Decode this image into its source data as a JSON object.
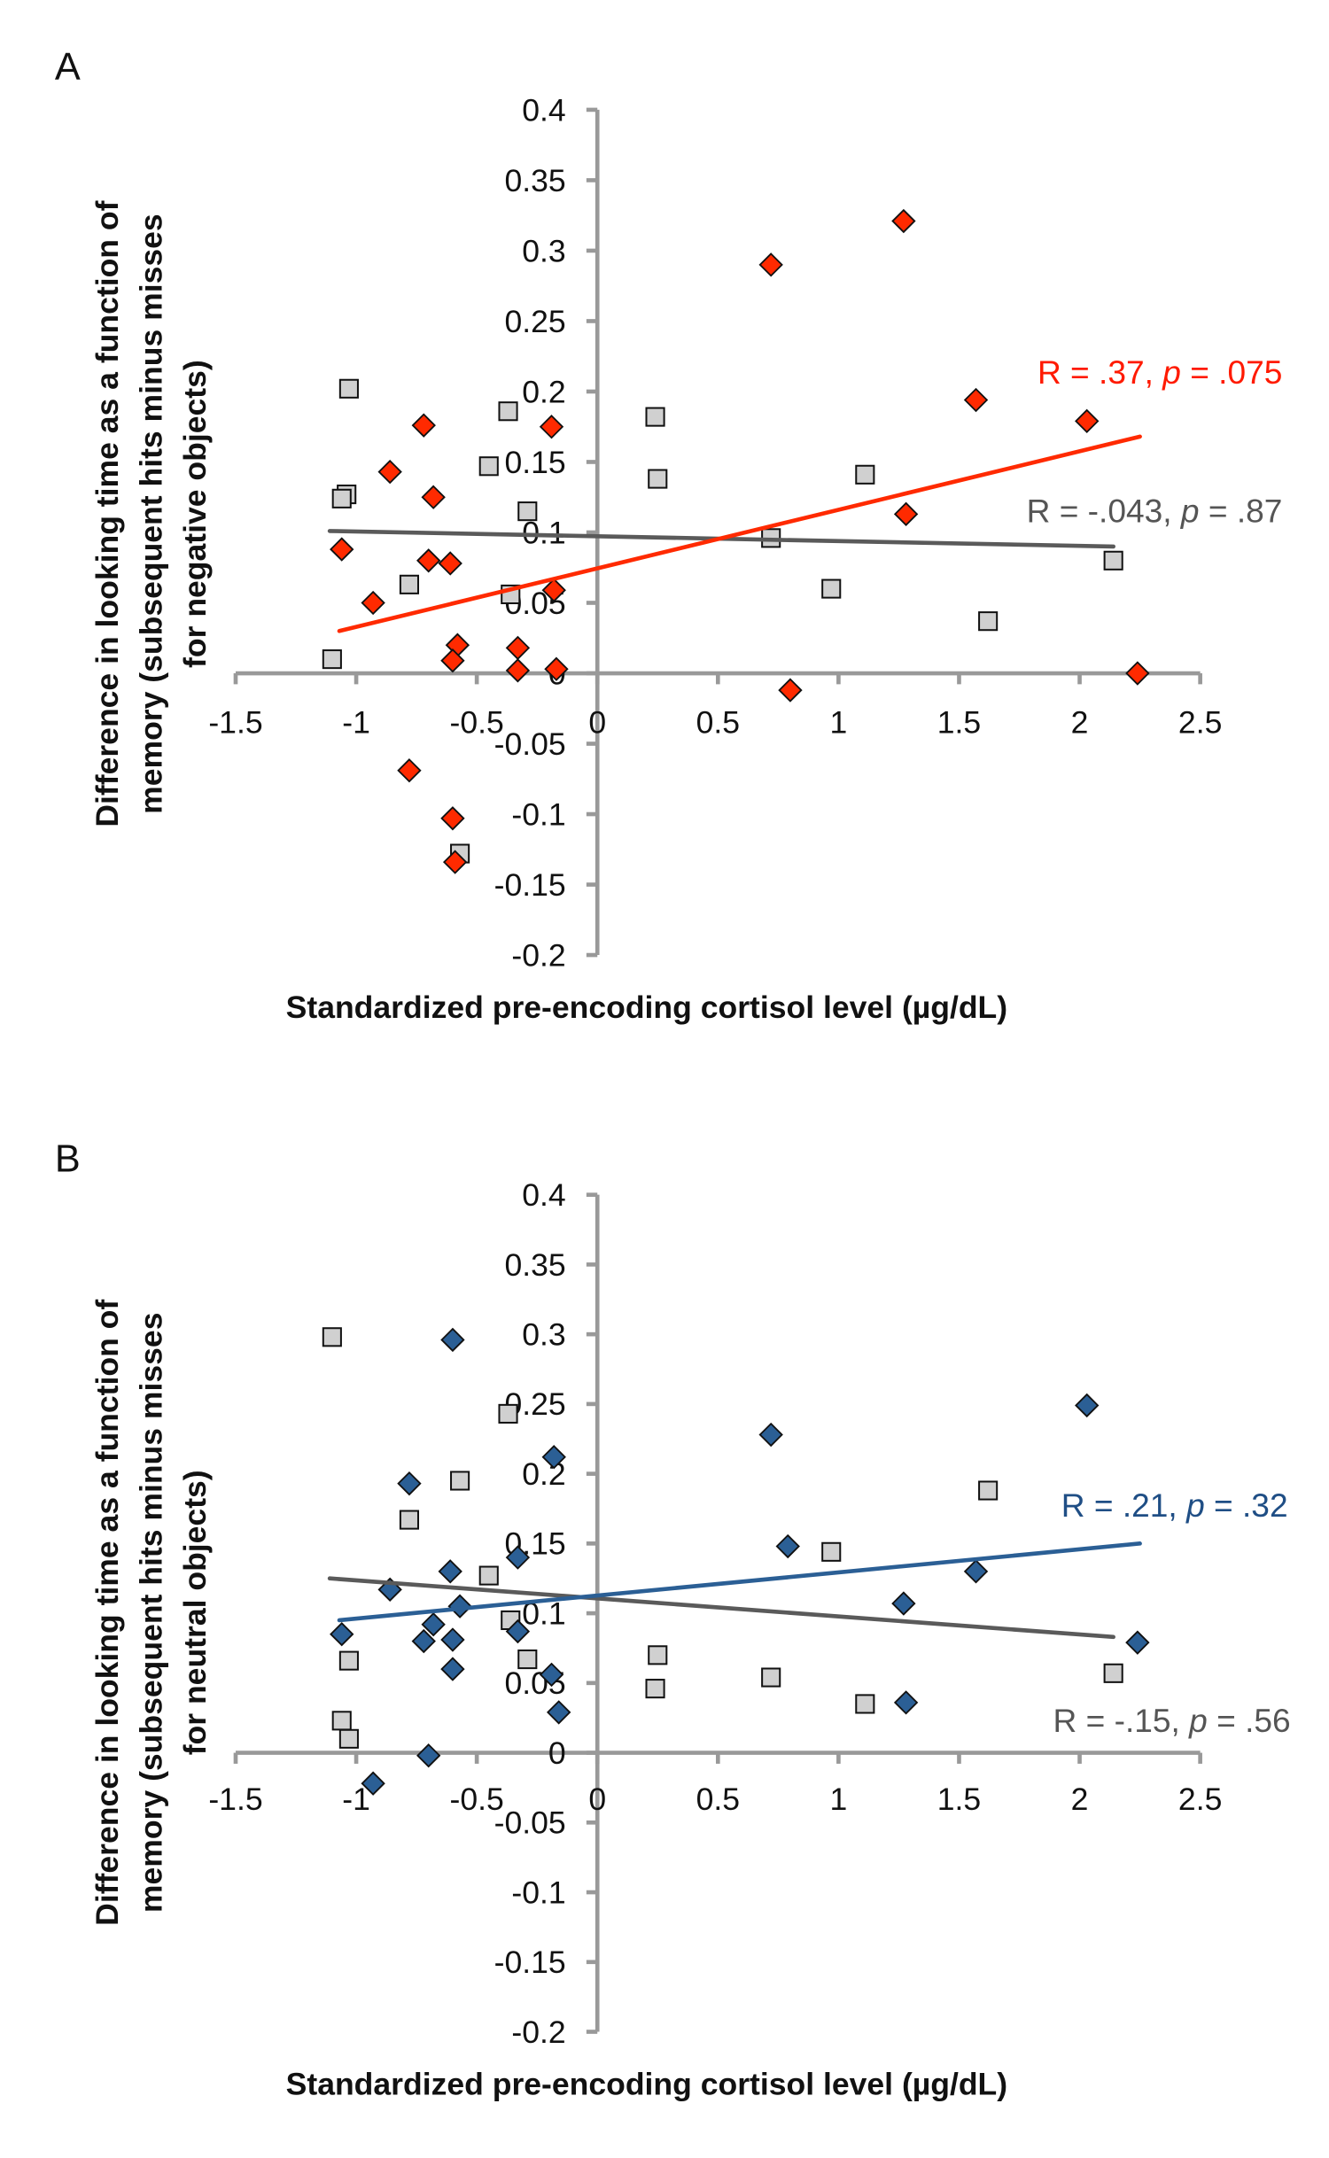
{
  "chart_data": [
    {
      "type": "scatter",
      "panel_label": "A",
      "xlabel": "Standardized pre-encoding cortisol level (µg/dL)",
      "ylabel_lines": [
        "Difference in looking time as a function of",
        "memory (subsequent hits minus misses",
        "for negative objects)"
      ],
      "xlim": [
        -1.5,
        2.5
      ],
      "ylim": [
        -0.2,
        0.4
      ],
      "x_ticks": [
        "-1.5",
        "-1",
        "-0.5",
        "0",
        "0.5",
        "1",
        "1.5",
        "2",
        "2.5"
      ],
      "y_ticks": [
        "-0.2",
        "-0.15",
        "-0.1",
        "-0.05",
        "0",
        "0.05",
        "0.1",
        "0.15",
        "0.2",
        "0.25",
        "0.3",
        "0.35",
        "0.4"
      ],
      "grid": false,
      "series": [
        {
          "marker": "diamond",
          "color": "#ff2a00",
          "points": [
            [
              1.27,
              0.321
            ],
            [
              0.72,
              0.29
            ],
            [
              1.57,
              0.194
            ],
            [
              2.03,
              0.179
            ],
            [
              1.28,
              0.113
            ],
            [
              0.8,
              -0.012
            ],
            [
              2.24,
              0.0
            ],
            [
              -0.19,
              0.175
            ],
            [
              -0.72,
              0.176
            ],
            [
              -0.86,
              0.143
            ],
            [
              -0.68,
              0.125
            ],
            [
              -1.06,
              0.088
            ],
            [
              -0.7,
              0.08
            ],
            [
              -0.61,
              0.078
            ],
            [
              -0.93,
              0.05
            ],
            [
              -0.18,
              0.059
            ],
            [
              -0.58,
              0.02
            ],
            [
              -0.6,
              0.009
            ],
            [
              -0.33,
              0.018
            ],
            [
              -0.33,
              0.002
            ],
            [
              -0.17,
              0.003
            ],
            [
              -0.78,
              -0.069
            ],
            [
              -0.6,
              -0.103
            ],
            [
              -0.59,
              -0.134
            ]
          ],
          "trendline": [
            [
              -1.07,
              0.03
            ],
            [
              2.25,
              0.168
            ]
          ],
          "annotation": {
            "R": "R = .37, ",
            "p_label": "p",
            "p_value": " = .075"
          }
        },
        {
          "marker": "square",
          "color": "#d0d0d0",
          "line_color": "#5a5a5a",
          "points": [
            [
              -1.03,
              0.202
            ],
            [
              -1.04,
              0.127
            ],
            [
              -1.06,
              0.124
            ],
            [
              -0.37,
              0.186
            ],
            [
              -0.45,
              0.147
            ],
            [
              -0.29,
              0.115
            ],
            [
              -0.78,
              0.063
            ],
            [
              -0.36,
              0.056
            ],
            [
              -1.1,
              0.01
            ],
            [
              -0.57,
              -0.128
            ],
            [
              0.24,
              0.182
            ],
            [
              0.25,
              0.138
            ],
            [
              0.72,
              0.096
            ],
            [
              1.11,
              0.141
            ],
            [
              0.97,
              0.06
            ],
            [
              1.62,
              0.037
            ],
            [
              2.14,
              0.08
            ]
          ],
          "trendline": [
            [
              -1.11,
              0.101
            ],
            [
              2.14,
              0.09
            ]
          ],
          "annotation": {
            "R": "R = -.043, ",
            "p_label": "p",
            "p_value": " = .87"
          }
        }
      ]
    },
    {
      "type": "scatter",
      "panel_label": "B",
      "xlabel": "Standardized pre-encoding cortisol level (µg/dL)",
      "ylabel_lines": [
        "Difference in looking time as a function of",
        "memory (subsequent hits minus misses",
        "for neutral objects)"
      ],
      "xlim": [
        -1.5,
        2.5
      ],
      "ylim": [
        -0.2,
        0.4
      ],
      "x_ticks": [
        "-1.5",
        "-1",
        "-0.5",
        "0",
        "0.5",
        "1",
        "1.5",
        "2",
        "2.5"
      ],
      "y_ticks": [
        "-0.2",
        "-0.15",
        "-0.1",
        "-0.05",
        "0",
        "0.05",
        "0.1",
        "0.15",
        "0.2",
        "0.25",
        "0.3",
        "0.35",
        "0.4"
      ],
      "grid": false,
      "series": [
        {
          "marker": "diamond",
          "color": "#2b5f95",
          "points": [
            [
              -0.6,
              0.296
            ],
            [
              0.72,
              0.228
            ],
            [
              2.03,
              0.249
            ],
            [
              -0.18,
              0.212
            ],
            [
              -0.78,
              0.193
            ],
            [
              -0.33,
              0.14
            ],
            [
              -0.61,
              0.13
            ],
            [
              0.79,
              0.148
            ],
            [
              1.57,
              0.13
            ],
            [
              1.27,
              0.107
            ],
            [
              -0.86,
              0.117
            ],
            [
              -0.57,
              0.105
            ],
            [
              -1.06,
              0.085
            ],
            [
              -0.68,
              0.092
            ],
            [
              -0.72,
              0.08
            ],
            [
              -0.6,
              0.081
            ],
            [
              -0.33,
              0.087
            ],
            [
              2.24,
              0.079
            ],
            [
              -0.6,
              0.06
            ],
            [
              -0.19,
              0.056
            ],
            [
              -0.16,
              0.029
            ],
            [
              1.28,
              0.036
            ],
            [
              -0.7,
              -0.002
            ],
            [
              -0.93,
              -0.022
            ]
          ],
          "trendline": [
            [
              -1.07,
              0.095
            ],
            [
              2.25,
              0.15
            ]
          ],
          "annotation": {
            "R": "R = .21, ",
            "p_label": "p",
            "p_value": " = .32"
          }
        },
        {
          "marker": "square",
          "color": "#d0d0d0",
          "line_color": "#5a5a5a",
          "points": [
            [
              -1.1,
              0.298
            ],
            [
              -0.37,
              0.243
            ],
            [
              -0.57,
              0.195
            ],
            [
              -0.78,
              0.167
            ],
            [
              -0.45,
              0.127
            ],
            [
              -0.36,
              0.095
            ],
            [
              -0.29,
              0.067
            ],
            [
              -1.03,
              0.066
            ],
            [
              -1.06,
              0.023
            ],
            [
              -1.03,
              0.01
            ],
            [
              0.25,
              0.07
            ],
            [
              0.24,
              0.046
            ],
            [
              0.72,
              0.054
            ],
            [
              0.97,
              0.144
            ],
            [
              1.62,
              0.188
            ],
            [
              1.11,
              0.035
            ],
            [
              2.14,
              0.057
            ]
          ],
          "trendline": [
            [
              -1.11,
              0.125
            ],
            [
              2.14,
              0.083
            ]
          ],
          "annotation": {
            "R": "R = -.15, ",
            "p_label": "p",
            "p_value": " = .56"
          }
        }
      ]
    }
  ]
}
